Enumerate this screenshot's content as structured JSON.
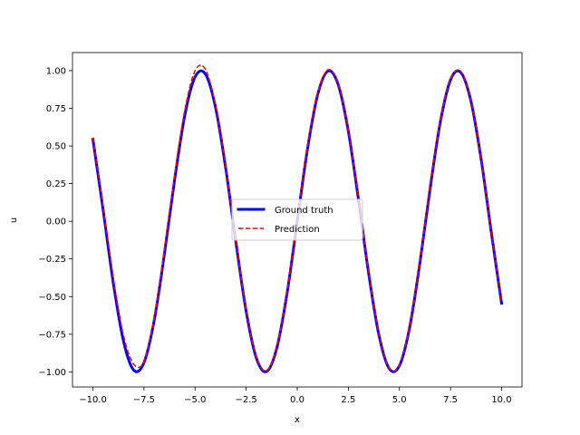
{
  "chart_data": {
    "type": "line",
    "xlabel": "x",
    "ylabel": "u",
    "xlim": [
      -11,
      11
    ],
    "ylim": [
      -1.1,
      1.12
    ],
    "xticks": [
      -10.0,
      -7.5,
      -5.0,
      -2.5,
      0.0,
      2.5,
      5.0,
      7.5,
      10.0
    ],
    "xtick_labels": [
      "−10.0",
      "−7.5",
      "−5.0",
      "−2.5",
      "0.0",
      "2.5",
      "5.0",
      "7.5",
      "10.0"
    ],
    "yticks": [
      -1.0,
      -0.75,
      -0.5,
      -0.25,
      0.0,
      0.25,
      0.5,
      0.75,
      1.0
    ],
    "ytick_labels": [
      "−1.00",
      "−0.75",
      "−0.50",
      "−0.25",
      "0.00",
      "0.25",
      "0.50",
      "0.75",
      "1.00"
    ],
    "grid": false,
    "legend_position": "center",
    "series": [
      {
        "name": "Ground truth",
        "color": "#0000ff",
        "style": "solid",
        "x": [
          -10.0,
          -9.5,
          -9.0,
          -8.5,
          -8.0,
          -7.5,
          -7.0,
          -6.5,
          -6.0,
          -5.5,
          -5.0,
          -4.5,
          -4.0,
          -3.5,
          -3.0,
          -2.5,
          -2.0,
          -1.5,
          -1.0,
          -0.5,
          0.0,
          0.5,
          1.0,
          1.5,
          2.0,
          2.5,
          3.0,
          3.5,
          4.0,
          4.5,
          5.0,
          5.5,
          6.0,
          6.5,
          7.0,
          7.5,
          8.0,
          8.5,
          9.0,
          9.5,
          10.0
        ],
        "y": [
          0.544,
          0.075,
          -0.412,
          -0.798,
          -0.989,
          -0.938,
          -0.657,
          -0.215,
          0.279,
          0.706,
          0.959,
          0.978,
          0.757,
          0.351,
          -0.141,
          -0.598,
          -0.909,
          -0.997,
          -0.841,
          -0.479,
          0.0,
          0.479,
          0.841,
          0.997,
          0.909,
          0.598,
          0.141,
          -0.351,
          -0.757,
          -0.978,
          -0.959,
          -0.706,
          -0.279,
          0.215,
          0.657,
          0.938,
          0.989,
          0.798,
          0.412,
          -0.075,
          -0.544
        ]
      },
      {
        "name": "Prediction",
        "color": "#ff0000",
        "style": "dashed",
        "x": [
          -10.0,
          -9.5,
          -9.0,
          -8.5,
          -8.0,
          -7.5,
          -7.0,
          -6.5,
          -6.0,
          -5.5,
          -5.0,
          -4.5,
          -4.0,
          -3.5,
          -3.0,
          -2.5,
          -2.0,
          -1.5,
          -1.0,
          -0.5,
          0.0,
          0.5,
          1.0,
          1.5,
          2.0,
          2.5,
          3.0,
          3.5,
          4.0,
          4.5,
          5.0,
          5.5,
          6.0,
          6.5,
          7.0,
          7.5,
          8.0,
          8.5,
          9.0,
          9.5,
          10.0
        ],
        "y": [
          0.555,
          0.095,
          -0.38,
          -0.76,
          -0.95,
          -0.93,
          -0.64,
          -0.19,
          0.31,
          0.74,
          1.0,
          1.01,
          0.77,
          0.36,
          -0.13,
          -0.59,
          -0.905,
          -0.99,
          -0.835,
          -0.47,
          0.01,
          0.49,
          0.85,
          1.005,
          0.915,
          0.605,
          0.15,
          -0.34,
          -0.75,
          -0.975,
          -0.955,
          -0.7,
          -0.27,
          0.225,
          0.665,
          0.945,
          0.995,
          0.8,
          0.415,
          -0.07,
          -0.535
        ]
      }
    ]
  }
}
